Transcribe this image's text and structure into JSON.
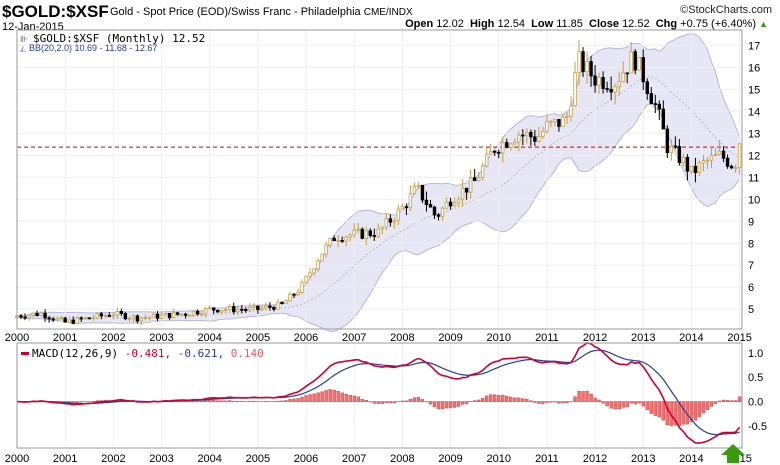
{
  "header": {
    "symbol": "$GOLD:$XSF",
    "description": "Gold - Spot Price (EOD)/Swiss Franc - Philadelphia",
    "exchange": "CME/INDX",
    "date": "12-Jan-2015",
    "credit": "©StockCharts.com",
    "open_label": "Open",
    "open": "12.02",
    "high_label": "High",
    "high": "12.54",
    "low_label": "Low",
    "low": "11.85",
    "close_label": "Close",
    "close": "12.52",
    "chg_label": "Chg",
    "chg": "+0.75 (+6.40%)"
  },
  "legend": {
    "price": "$GOLD:$XSF (Monthly) 12.52",
    "bb": "BB(20,2.0) 10.69 - 11.68 - 12.67",
    "macd_name": "MACD(12,26,9)",
    "macd_val": "-0.481,",
    "signal_val": "-0.621,",
    "hist_val": "0.140"
  },
  "colors": {
    "up": "#c8a040",
    "down": "#000000",
    "band": "#e6e6f5",
    "bandLine": "#b8b8d8",
    "macd": "#cc0033",
    "signal": "#2040a0",
    "hist": "#f07070",
    "hline": "#cc0000",
    "arrow": "#3a9a10"
  },
  "chart_data": [
    {
      "type": "candlestick",
      "title": "$GOLD:$XSF (Monthly)",
      "x_ticks": [
        "2000",
        "2001",
        "2002",
        "2003",
        "2004",
        "2005",
        "2006",
        "2007",
        "2008",
        "2009",
        "2010",
        "2011",
        "2012",
        "2013",
        "2014",
        "2015"
      ],
      "y_ticks": [
        5,
        6,
        7,
        8,
        9,
        10,
        11,
        12,
        13,
        14,
        15,
        16,
        17
      ],
      "ylim": [
        4.1,
        17.7
      ],
      "xlim": [
        2000,
        2015.05
      ],
      "reference_line": 12.37,
      "approx_close_keypoints": [
        [
          2000,
          4.7
        ],
        [
          2000.5,
          4.8
        ],
        [
          2001,
          4.4
        ],
        [
          2001.5,
          4.6
        ],
        [
          2002,
          4.8
        ],
        [
          2002.5,
          4.6
        ],
        [
          2003,
          4.7
        ],
        [
          2003.5,
          4.8
        ],
        [
          2004,
          5.0
        ],
        [
          2004.5,
          5.0
        ],
        [
          2005,
          5.0
        ],
        [
          2005.5,
          5.2
        ],
        [
          2005.9,
          6.0
        ],
        [
          2006.3,
          7.5
        ],
        [
          2006.6,
          8.3
        ],
        [
          2007,
          8.4
        ],
        [
          2007.5,
          8.5
        ],
        [
          2008,
          9.6
        ],
        [
          2008.3,
          10.5
        ],
        [
          2008.7,
          9.2
        ],
        [
          2009,
          10.0
        ],
        [
          2009.5,
          10.8
        ],
        [
          2009.9,
          12.3
        ],
        [
          2010.4,
          13.0
        ],
        [
          2010.8,
          12.8
        ],
        [
          2011,
          13.3
        ],
        [
          2011.4,
          13.6
        ],
        [
          2011.65,
          16.3
        ],
        [
          2012,
          15.5
        ],
        [
          2012.4,
          15.3
        ],
        [
          2012.8,
          16.5
        ],
        [
          2013,
          15.6
        ],
        [
          2013.3,
          14.0
        ],
        [
          2013.5,
          12.4
        ],
        [
          2013.8,
          11.8
        ],
        [
          2014,
          11.2
        ],
        [
          2014.3,
          11.7
        ],
        [
          2014.6,
          12.0
        ],
        [
          2014.9,
          11.5
        ],
        [
          2015,
          12.52
        ]
      ]
    },
    {
      "type": "line",
      "title": "MACD(12,26,9)",
      "series": [
        "MACD",
        "Signal",
        "Histogram"
      ],
      "y_ticks": [
        -0.5,
        0.0,
        0.5,
        1.0
      ],
      "ylim": [
        -0.95,
        1.2
      ],
      "last": {
        "macd": -0.481,
        "signal": -0.621,
        "hist": 0.14
      }
    }
  ]
}
